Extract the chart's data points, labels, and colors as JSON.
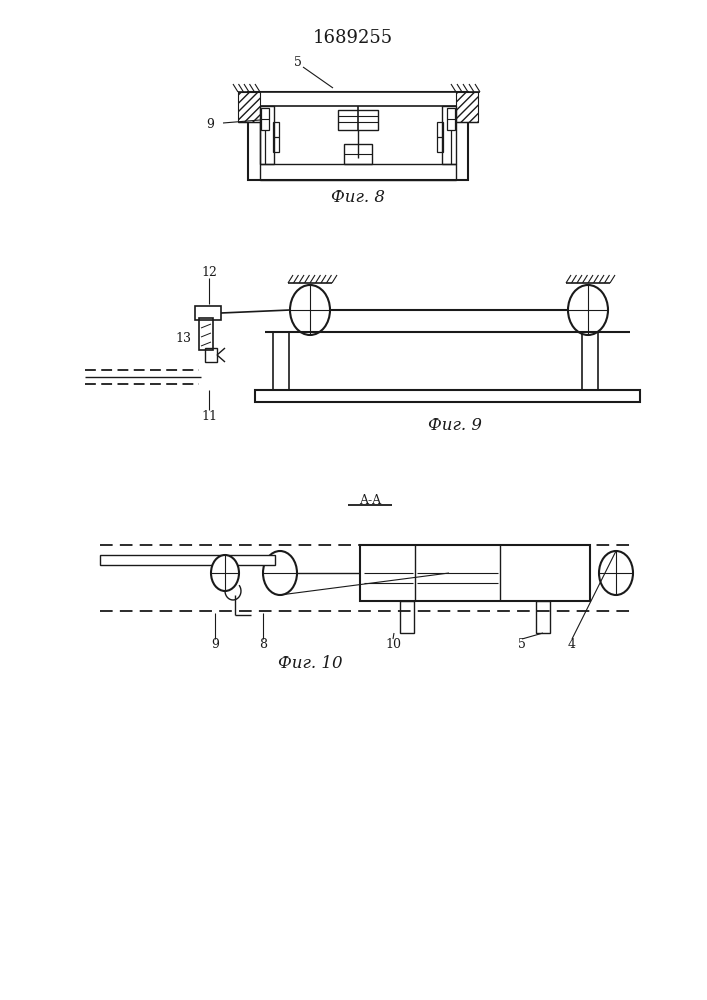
{
  "title": "1689255",
  "bg_color": "#ffffff",
  "line_color": "#1a1a1a",
  "fig8_caption": "Фиг. 8",
  "fig9_caption": "Фиг. 9",
  "fig10_caption": "Фиг. 10",
  "caption_fontsize": 12,
  "label_fontsize": 9
}
